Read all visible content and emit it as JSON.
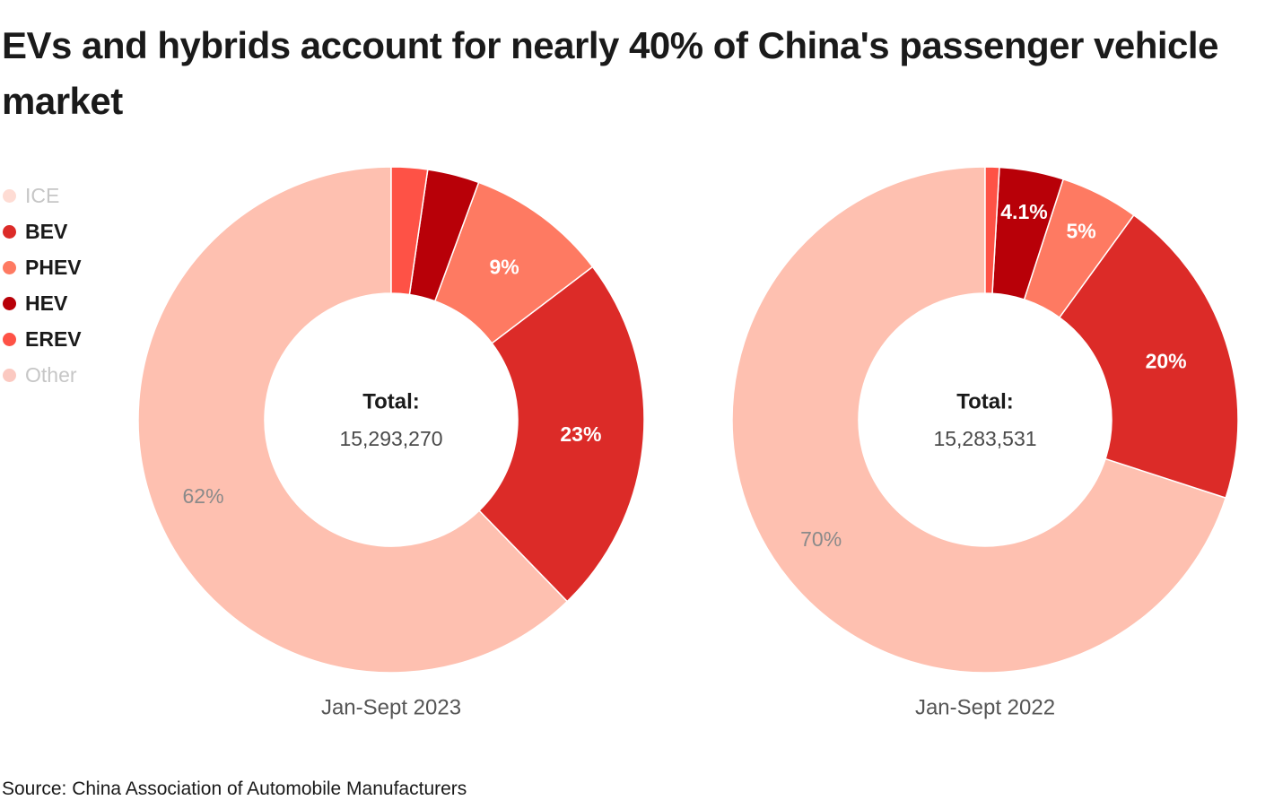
{
  "title": "EVs and hybrids account for nearly 40% of China's passenger vehicle market",
  "source": "Source: China Association of Automobile Manufacturers",
  "colors": {
    "ICE": "#fec0b0",
    "BEV": "#dc2b28",
    "PHEV": "#fe7a62",
    "HEV": "#b80008",
    "EREV": "#fe5246",
    "Other": "#f79c8e"
  },
  "legend": [
    {
      "label": "ICE",
      "muted": true
    },
    {
      "label": "BEV",
      "muted": false
    },
    {
      "label": "PHEV",
      "muted": false
    },
    {
      "label": "HEV",
      "muted": false
    },
    {
      "label": "EREV",
      "muted": false
    },
    {
      "label": "Other",
      "muted": true
    }
  ],
  "chart_data": [
    {
      "type": "pie",
      "donut": true,
      "categories": [
        "ICE",
        "BEV",
        "PHEV",
        "HEV",
        "EREV"
      ],
      "values": [
        62,
        23,
        9,
        3.3,
        2.3
      ],
      "slice_labels": [
        "62%",
        "23%",
        "9%",
        "",
        ""
      ],
      "center_title": "Total:",
      "center_value": "15,293,270",
      "xlabel": "Jan-Sept 2023"
    },
    {
      "type": "pie",
      "donut": true,
      "categories": [
        "ICE",
        "BEV",
        "PHEV",
        "HEV",
        "EREV"
      ],
      "values": [
        70,
        20,
        5,
        4.1,
        0.9
      ],
      "slice_labels": [
        "70%",
        "20%",
        "5%",
        "4.1%",
        ""
      ],
      "center_title": "Total:",
      "center_value": "15,283,531",
      "xlabel": "Jan-Sept 2022"
    }
  ]
}
